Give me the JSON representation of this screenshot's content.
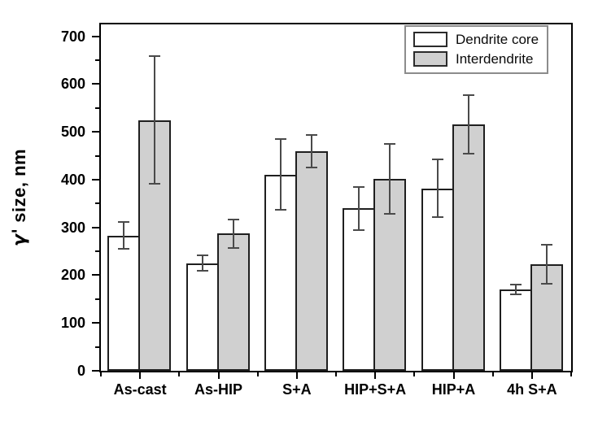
{
  "chart_data": {
    "type": "bar",
    "title": "",
    "ylabel_gamma": "γ'",
    "ylabel_rest": " size, nm",
    "xlabel": "",
    "ylim": [
      0,
      725
    ],
    "yticks": [
      0,
      100,
      200,
      300,
      400,
      500,
      600,
      700
    ],
    "minor_tick_step": 50,
    "grid": false,
    "legend_position": "top-right",
    "categories": [
      "As-cast",
      "As-HIP",
      "S+A",
      "HIP+S+A",
      "HIP+A",
      "4h S+A"
    ],
    "series": [
      {
        "name": "Dendrite core",
        "fill": "#ffffff",
        "values": [
          283,
          225,
          411,
          340,
          382,
          170
        ],
        "errors": [
          28,
          16,
          74,
          45,
          61,
          10
        ]
      },
      {
        "name": "Interdendrite",
        "fill": "#d0d0d0",
        "values": [
          525,
          287,
          460,
          401,
          516,
          223
        ],
        "errors": [
          134,
          30,
          34,
          73,
          61,
          41
        ]
      }
    ],
    "colors": {
      "bar_outline": "#1f1f1f",
      "error_bar": "#4a4a4a",
      "axis": "#000000",
      "legend_border": "#8c8c8c"
    }
  }
}
